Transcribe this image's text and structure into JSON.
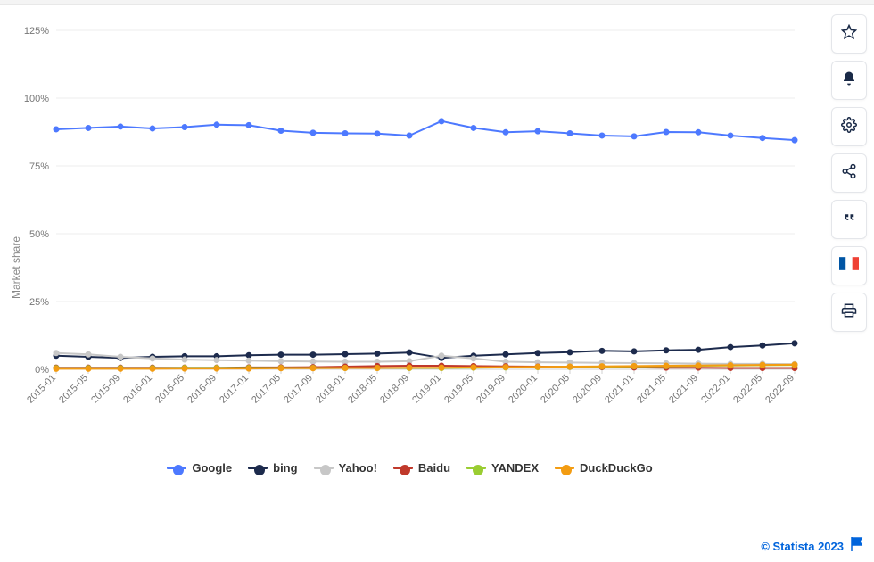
{
  "chart": {
    "type": "line",
    "y_label": "Market share",
    "background_color": "#ffffff",
    "plot_background": "#ffffff",
    "grid_color": "#ececec",
    "axis_text_color": "#777777",
    "axis_font_size": 11,
    "ylim": [
      0,
      125
    ],
    "ytick_step": 25,
    "ytick_suffix": "%",
    "x_categories": [
      "2015-01",
      "2015-05",
      "2015-09",
      "2016-01",
      "2016-05",
      "2016-09",
      "2017-01",
      "2017-05",
      "2017-09",
      "2018-01",
      "2018-05",
      "2018-09",
      "2019-01",
      "2019-05",
      "2019-09",
      "2020-01",
      "2020-05",
      "2020-09",
      "2021-01",
      "2021-05",
      "2021-09",
      "2022-01",
      "2022-05",
      "2022-09"
    ],
    "x_label_rotation": -45,
    "line_width": 2,
    "marker_size": 3,
    "series": [
      {
        "name": "Google",
        "color": "#4d79ff",
        "values": [
          88.5,
          89.0,
          89.5,
          88.8,
          89.3,
          90.2,
          90.0,
          88.0,
          87.2,
          87.0,
          86.9,
          86.2,
          91.5,
          89.0,
          87.4,
          87.8,
          87.0,
          86.2,
          85.9,
          87.5,
          87.4,
          86.2,
          85.3,
          84.5
        ]
      },
      {
        "name": "bing",
        "color": "#1d2b4d",
        "values": [
          5.0,
          4.6,
          4.2,
          4.6,
          4.8,
          4.8,
          5.2,
          5.4,
          5.4,
          5.6,
          5.8,
          6.2,
          4.2,
          5.0,
          5.5,
          6.0,
          6.3,
          6.8,
          6.6,
          7.0,
          7.2,
          8.2,
          8.8,
          9.6
        ]
      },
      {
        "name": "Yahoo!",
        "color": "#c7c7c7",
        "values": [
          6.0,
          5.5,
          4.6,
          4.0,
          3.6,
          3.4,
          3.2,
          3.0,
          2.9,
          2.8,
          2.8,
          3.0,
          5.0,
          4.0,
          2.8,
          2.6,
          2.5,
          2.4,
          2.3,
          2.2,
          2.1,
          2.0,
          2.0,
          1.9
        ]
      },
      {
        "name": "Baidu",
        "color": "#c0392b",
        "values": [
          0.6,
          0.6,
          0.6,
          0.6,
          0.6,
          0.6,
          0.7,
          0.7,
          0.8,
          1.0,
          1.2,
          1.3,
          1.3,
          1.2,
          1.1,
          1.0,
          0.9,
          0.8,
          0.7,
          0.6,
          0.6,
          0.5,
          0.5,
          0.5
        ]
      },
      {
        "name": "YANDEX",
        "color": "#9acd32",
        "values": [
          0.4,
          0.4,
          0.4,
          0.4,
          0.5,
          0.5,
          0.5,
          0.5,
          0.5,
          0.5,
          0.5,
          0.5,
          0.5,
          0.6,
          0.7,
          0.8,
          0.9,
          1.0,
          1.1,
          1.2,
          1.3,
          1.4,
          1.5,
          1.6
        ]
      },
      {
        "name": "DuckDuckGo",
        "color": "#f39c12",
        "values": [
          0.2,
          0.2,
          0.2,
          0.2,
          0.3,
          0.3,
          0.3,
          0.4,
          0.4,
          0.5,
          0.5,
          0.6,
          0.6,
          0.7,
          0.8,
          0.9,
          1.0,
          1.1,
          1.2,
          1.3,
          1.4,
          1.5,
          1.6,
          1.7
        ]
      }
    ],
    "legend_font_size": 13,
    "legend_font_weight": 700
  },
  "toolbar": {
    "items": [
      {
        "key": "star",
        "title": "Favorite"
      },
      {
        "key": "bell",
        "title": "Notify"
      },
      {
        "key": "gear",
        "title": "Settings"
      },
      {
        "key": "share",
        "title": "Share"
      },
      {
        "key": "quote",
        "title": "Citation"
      },
      {
        "key": "flag-fr",
        "title": "Language"
      },
      {
        "key": "print",
        "title": "Print"
      }
    ]
  },
  "footer": {
    "credit_text": "© Statista 2023",
    "credit_color": "#0064dc",
    "report_icon": "flag"
  }
}
